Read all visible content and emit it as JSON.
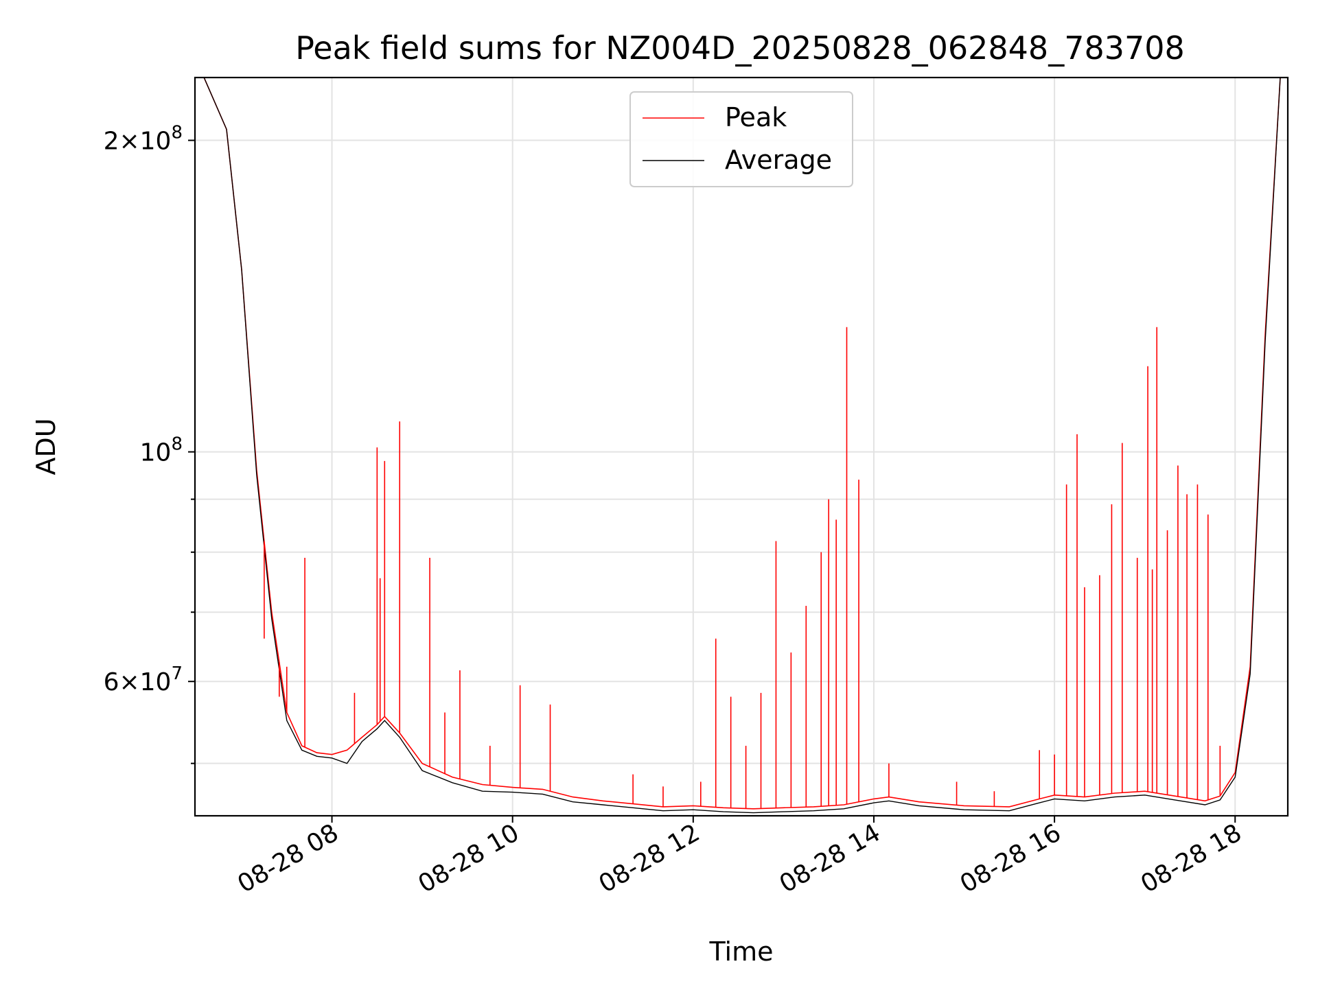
{
  "chart_data": {
    "type": "line",
    "title": "Peak field sums for NZ004D_20250828_062848_783708",
    "xlabel": "Time",
    "ylabel": "ADU",
    "yscale": "log",
    "ylim": [
      44500000,
      230000000
    ],
    "xlim": [
      "2025-08-28 06:29",
      "2025-08-28 18:35"
    ],
    "grid": true,
    "legend_position": "top-center",
    "x_ticks": [
      {
        "value": "2025-08-28 08:00",
        "label": "08-28 08"
      },
      {
        "value": "2025-08-28 10:00",
        "label": "08-28 10"
      },
      {
        "value": "2025-08-28 12:00",
        "label": "08-28 12"
      },
      {
        "value": "2025-08-28 14:00",
        "label": "08-28 14"
      },
      {
        "value": "2025-08-28 16:00",
        "label": "08-28 16"
      },
      {
        "value": "2025-08-28 18:00",
        "label": "08-28 18"
      }
    ],
    "y_major_ticks": [
      {
        "value": 60000000,
        "mantissa": "6",
        "exponent": "7"
      },
      {
        "value": 100000000,
        "mantissa": "",
        "exponent": "8"
      },
      {
        "value": 200000000,
        "mantissa": "2",
        "exponent": "8"
      }
    ],
    "y_minor_ticks": [
      50000000,
      70000000,
      80000000,
      90000000
    ],
    "series": [
      {
        "name": "Peak",
        "color": "#ff0000",
        "points": [
          [
            "2025-08-28 06:35",
            230000000
          ],
          [
            "2025-08-28 06:50",
            205000000
          ],
          [
            "2025-08-28 07:00",
            150000000
          ],
          [
            "2025-08-28 07:10",
            96000000
          ],
          [
            "2025-08-28 07:20",
            70000000
          ],
          [
            "2025-08-28 07:30",
            56000000
          ],
          [
            "2025-08-28 07:40",
            52000000
          ],
          [
            "2025-08-28 07:50",
            51200000
          ],
          [
            "2025-08-28 08:00",
            51000000
          ],
          [
            "2025-08-28 08:10",
            51500000
          ],
          [
            "2025-08-28 08:20",
            53000000
          ],
          [
            "2025-08-28 08:30",
            54500000
          ],
          [
            "2025-08-28 08:35",
            55500000
          ],
          [
            "2025-08-28 08:45",
            53500000
          ],
          [
            "2025-08-28 09:00",
            50000000
          ],
          [
            "2025-08-28 09:20",
            48500000
          ],
          [
            "2025-08-28 09:40",
            47700000
          ],
          [
            "2025-08-28 10:00",
            47400000
          ],
          [
            "2025-08-28 10:20",
            47200000
          ],
          [
            "2025-08-28 10:40",
            46400000
          ],
          [
            "2025-08-28 11:00",
            46000000
          ],
          [
            "2025-08-28 11:20",
            45700000
          ],
          [
            "2025-08-28 11:40",
            45400000
          ],
          [
            "2025-08-28 12:00",
            45500000
          ],
          [
            "2025-08-28 12:20",
            45300000
          ],
          [
            "2025-08-28 12:40",
            45200000
          ],
          [
            "2025-08-28 13:00",
            45300000
          ],
          [
            "2025-08-28 13:20",
            45400000
          ],
          [
            "2025-08-28 13:40",
            45600000
          ],
          [
            "2025-08-28 14:00",
            46200000
          ],
          [
            "2025-08-28 14:10",
            46400000
          ],
          [
            "2025-08-28 14:30",
            45900000
          ],
          [
            "2025-08-28 15:00",
            45500000
          ],
          [
            "2025-08-28 15:30",
            45400000
          ],
          [
            "2025-08-28 15:50",
            46200000
          ],
          [
            "2025-08-28 16:00",
            46600000
          ],
          [
            "2025-08-28 16:20",
            46400000
          ],
          [
            "2025-08-28 16:40",
            46800000
          ],
          [
            "2025-08-28 17:00",
            47000000
          ],
          [
            "2025-08-28 17:20",
            46500000
          ],
          [
            "2025-08-28 17:40",
            46000000
          ],
          [
            "2025-08-28 17:50",
            46500000
          ],
          [
            "2025-08-28 18:00",
            49000000
          ],
          [
            "2025-08-28 18:10",
            62000000
          ],
          [
            "2025-08-28 18:20",
            130000000
          ],
          [
            "2025-08-28 18:30",
            230000000
          ]
        ],
        "spikes": [
          [
            "2025-08-28 07:15",
            66000000
          ],
          [
            "2025-08-28 07:25",
            58000000
          ],
          [
            "2025-08-28 07:30",
            62000000
          ],
          [
            "2025-08-28 07:42",
            79000000
          ],
          [
            "2025-08-28 08:15",
            58500000
          ],
          [
            "2025-08-28 08:30",
            101000000
          ],
          [
            "2025-08-28 08:32",
            75500000
          ],
          [
            "2025-08-28 08:35",
            98000000
          ],
          [
            "2025-08-28 08:40",
            54500000
          ],
          [
            "2025-08-28 08:45",
            107000000
          ],
          [
            "2025-08-28 09:05",
            79000000
          ],
          [
            "2025-08-28 09:15",
            56000000
          ],
          [
            "2025-08-28 09:25",
            61500000
          ],
          [
            "2025-08-28 09:45",
            52000000
          ],
          [
            "2025-08-28 10:05",
            59500000
          ],
          [
            "2025-08-28 10:25",
            57000000
          ],
          [
            "2025-08-28 11:20",
            48800000
          ],
          [
            "2025-08-28 11:40",
            47500000
          ],
          [
            "2025-08-28 12:05",
            48000000
          ],
          [
            "2025-08-28 12:15",
            66000000
          ],
          [
            "2025-08-28 12:25",
            58000000
          ],
          [
            "2025-08-28 12:35",
            52000000
          ],
          [
            "2025-08-28 12:45",
            58500000
          ],
          [
            "2025-08-28 12:55",
            82000000
          ],
          [
            "2025-08-28 13:05",
            64000000
          ],
          [
            "2025-08-28 13:15",
            71000000
          ],
          [
            "2025-08-28 13:25",
            80000000
          ],
          [
            "2025-08-28 13:30",
            90000000
          ],
          [
            "2025-08-28 13:35",
            86000000
          ],
          [
            "2025-08-28 13:42",
            132000000
          ],
          [
            "2025-08-28 13:50",
            94000000
          ],
          [
            "2025-08-28 14:10",
            50000000
          ],
          [
            "2025-08-28 14:55",
            48000000
          ],
          [
            "2025-08-28 15:20",
            47000000
          ],
          [
            "2025-08-28 15:50",
            51500000
          ],
          [
            "2025-08-28 16:00",
            51000000
          ],
          [
            "2025-08-28 16:08",
            93000000
          ],
          [
            "2025-08-28 16:15",
            104000000
          ],
          [
            "2025-08-28 16:20",
            74000000
          ],
          [
            "2025-08-28 16:30",
            76000000
          ],
          [
            "2025-08-28 16:38",
            89000000
          ],
          [
            "2025-08-28 16:45",
            102000000
          ],
          [
            "2025-08-28 16:55",
            79000000
          ],
          [
            "2025-08-28 17:02",
            121000000
          ],
          [
            "2025-08-28 17:05",
            77000000
          ],
          [
            "2025-08-28 17:08",
            132000000
          ],
          [
            "2025-08-28 17:15",
            84000000
          ],
          [
            "2025-08-28 17:22",
            97000000
          ],
          [
            "2025-08-28 17:28",
            91000000
          ],
          [
            "2025-08-28 17:35",
            93000000
          ],
          [
            "2025-08-28 17:42",
            87000000
          ],
          [
            "2025-08-28 17:50",
            52000000
          ]
        ]
      },
      {
        "name": "Average",
        "color": "#000000",
        "points": [
          [
            "2025-08-28 06:35",
            230000000
          ],
          [
            "2025-08-28 06:50",
            205000000
          ],
          [
            "2025-08-28 07:00",
            150000000
          ],
          [
            "2025-08-28 07:10",
            95000000
          ],
          [
            "2025-08-28 07:20",
            69000000
          ],
          [
            "2025-08-28 07:30",
            55000000
          ],
          [
            "2025-08-28 07:40",
            51500000
          ],
          [
            "2025-08-28 07:50",
            50800000
          ],
          [
            "2025-08-28 08:00",
            50600000
          ],
          [
            "2025-08-28 08:10",
            50000000
          ],
          [
            "2025-08-28 08:20",
            52500000
          ],
          [
            "2025-08-28 08:30",
            54000000
          ],
          [
            "2025-08-28 08:35",
            55000000
          ],
          [
            "2025-08-28 08:45",
            53000000
          ],
          [
            "2025-08-28 09:00",
            49200000
          ],
          [
            "2025-08-28 09:20",
            47900000
          ],
          [
            "2025-08-28 09:40",
            47000000
          ],
          [
            "2025-08-28 10:00",
            46900000
          ],
          [
            "2025-08-28 10:20",
            46700000
          ],
          [
            "2025-08-28 10:40",
            45900000
          ],
          [
            "2025-08-28 11:00",
            45600000
          ],
          [
            "2025-08-28 11:20",
            45300000
          ],
          [
            "2025-08-28 11:40",
            45000000
          ],
          [
            "2025-08-28 12:00",
            45100000
          ],
          [
            "2025-08-28 12:20",
            44900000
          ],
          [
            "2025-08-28 12:40",
            44800000
          ],
          [
            "2025-08-28 13:00",
            44900000
          ],
          [
            "2025-08-28 13:20",
            45000000
          ],
          [
            "2025-08-28 13:40",
            45200000
          ],
          [
            "2025-08-28 14:00",
            45800000
          ],
          [
            "2025-08-28 14:10",
            46000000
          ],
          [
            "2025-08-28 14:30",
            45500000
          ],
          [
            "2025-08-28 15:00",
            45100000
          ],
          [
            "2025-08-28 15:30",
            45000000
          ],
          [
            "2025-08-28 15:50",
            45800000
          ],
          [
            "2025-08-28 16:00",
            46200000
          ],
          [
            "2025-08-28 16:20",
            46000000
          ],
          [
            "2025-08-28 16:40",
            46400000
          ],
          [
            "2025-08-28 17:00",
            46600000
          ],
          [
            "2025-08-28 17:20",
            46100000
          ],
          [
            "2025-08-28 17:40",
            45600000
          ],
          [
            "2025-08-28 17:50",
            46100000
          ],
          [
            "2025-08-28 18:00",
            48500000
          ],
          [
            "2025-08-28 18:10",
            61000000
          ],
          [
            "2025-08-28 18:20",
            128000000
          ],
          [
            "2025-08-28 18:30",
            230000000
          ]
        ]
      }
    ]
  }
}
